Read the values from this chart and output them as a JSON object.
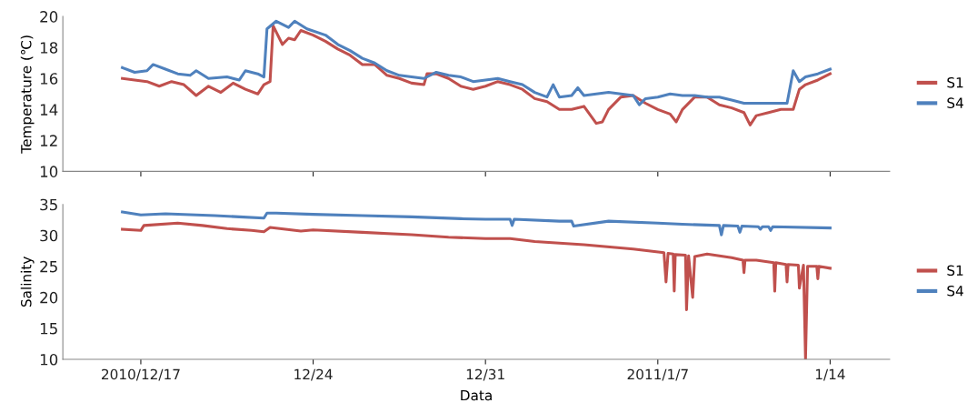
{
  "chart_data": [
    {
      "type": "line",
      "ylabel": "Temperature (℃)",
      "ylim": [
        10,
        20
      ],
      "yticks": [
        10,
        12,
        14,
        16,
        18,
        20
      ],
      "xlim": [
        "2010-12-13T20:00",
        "2011-01-16T10:00"
      ],
      "xticks": [
        {
          "value": "2010-12-17",
          "label": null
        },
        {
          "value": "2010-12-24",
          "label": null
        },
        {
          "value": "2010-12-31",
          "label": null
        },
        {
          "value": "2011-01-07",
          "label": null
        },
        {
          "value": "2011-01-14",
          "label": null
        }
      ],
      "tick_labels": "y",
      "legend": "right",
      "grid": false,
      "series": [
        {
          "name": "S1",
          "color": "#c0504d",
          "x": [
            "2010-12-16T06:00",
            "2010-12-16T18:00",
            "2010-12-17T06:00",
            "2010-12-17T18:00",
            "2010-12-18T06:00",
            "2010-12-18T18:00",
            "2010-12-19T06:00",
            "2010-12-19T18:00",
            "2010-12-20T06:00",
            "2010-12-20T18:00",
            "2010-12-21T06:00",
            "2010-12-21T18:00",
            "2010-12-22T00:00",
            "2010-12-22T06:00",
            "2010-12-22T09:00",
            "2010-12-22T18:00",
            "2010-12-23T00:00",
            "2010-12-23T06:00",
            "2010-12-23T12:00",
            "2010-12-24T00:00",
            "2010-12-24T12:00",
            "2010-12-25T00:00",
            "2010-12-25T12:00",
            "2010-12-26T00:00",
            "2010-12-26T12:00",
            "2010-12-27T00:00",
            "2010-12-27T12:00",
            "2010-12-28T00:00",
            "2010-12-28T12:00",
            "2010-12-28T15:00",
            "2010-12-29T00:00",
            "2010-12-29T12:00",
            "2010-12-30T00:00",
            "2010-12-30T12:00",
            "2010-12-31T00:00",
            "2010-12-31T12:00",
            "2011-01-01T00:00",
            "2011-01-01T12:00",
            "2011-01-02T00:00",
            "2011-01-02T12:00",
            "2011-01-03T00:00",
            "2011-01-03T12:00",
            "2011-01-04T00:00",
            "2011-01-04T12:00",
            "2011-01-04T18:00",
            "2011-01-05T00:00",
            "2011-01-05T12:00",
            "2011-01-06T00:00",
            "2011-01-06T12:00",
            "2011-01-07T00:00",
            "2011-01-07T12:00",
            "2011-01-07T18:00",
            "2011-01-08T00:00",
            "2011-01-08T12:00",
            "2011-01-09T00:00",
            "2011-01-09T12:00",
            "2011-01-10T00:00",
            "2011-01-10T12:00",
            "2011-01-10T18:00",
            "2011-01-11T00:00",
            "2011-01-11T12:00",
            "2011-01-12T00:00",
            "2011-01-12T12:00",
            "2011-01-12T18:00",
            "2011-01-13T00:00",
            "2011-01-13T12:00",
            "2011-01-14T00:00"
          ],
          "values": [
            16.0,
            15.9,
            15.8,
            15.5,
            15.8,
            15.6,
            14.9,
            15.5,
            15.1,
            15.7,
            15.3,
            15.0,
            15.6,
            15.8,
            19.4,
            18.2,
            18.6,
            18.5,
            19.1,
            18.8,
            18.4,
            17.9,
            17.5,
            16.9,
            16.9,
            16.2,
            16.0,
            15.7,
            15.6,
            16.3,
            16.3,
            16.0,
            15.5,
            15.3,
            15.5,
            15.8,
            15.6,
            15.3,
            14.7,
            14.5,
            14.0,
            14.0,
            14.2,
            13.1,
            13.2,
            14.0,
            14.8,
            14.9,
            14.4,
            14.0,
            13.7,
            13.2,
            14.0,
            14.8,
            14.8,
            14.3,
            14.1,
            13.8,
            13.0,
            13.6,
            13.8,
            14.0,
            14.0,
            15.3,
            15.6,
            15.9,
            16.3
          ]
        },
        {
          "name": "S4",
          "color": "#4f81bd",
          "x": [
            "2010-12-16T06:00",
            "2010-12-16T18:00",
            "2010-12-17T06:00",
            "2010-12-17T12:00",
            "2010-12-18T00:00",
            "2010-12-18T12:00",
            "2010-12-19T00:00",
            "2010-12-19T06:00",
            "2010-12-19T18:00",
            "2010-12-20T12:00",
            "2010-12-21T00:00",
            "2010-12-21T06:00",
            "2010-12-21T18:00",
            "2010-12-22T00:00",
            "2010-12-22T03:00",
            "2010-12-22T12:00",
            "2010-12-23T00:00",
            "2010-12-23T06:00",
            "2010-12-23T18:00",
            "2010-12-24T12:00",
            "2010-12-25T00:00",
            "2010-12-25T12:00",
            "2010-12-26T00:00",
            "2010-12-26T12:00",
            "2010-12-27T00:00",
            "2010-12-27T12:00",
            "2010-12-28T00:00",
            "2010-12-28T12:00",
            "2010-12-29T00:00",
            "2010-12-29T12:00",
            "2010-12-30T00:00",
            "2010-12-30T12:00",
            "2010-12-31T00:00",
            "2010-12-31T12:00",
            "2011-01-01T00:00",
            "2011-01-01T12:00",
            "2011-01-02T00:00",
            "2011-01-02T12:00",
            "2011-01-02T18:00",
            "2011-01-03T00:00",
            "2011-01-03T12:00",
            "2011-01-03T18:00",
            "2011-01-04T00:00",
            "2011-01-04T12:00",
            "2011-01-05T00:00",
            "2011-01-05T12:00",
            "2011-01-06T00:00",
            "2011-01-06T06:00",
            "2011-01-06T12:00",
            "2011-01-07T00:00",
            "2011-01-07T12:00",
            "2011-01-08T00:00",
            "2011-01-08T12:00",
            "2011-01-09T00:00",
            "2011-01-09T12:00",
            "2011-01-10T00:00",
            "2011-01-10T12:00",
            "2011-01-11T00:00",
            "2011-01-11T12:00",
            "2011-01-12T00:00",
            "2011-01-12T06:00",
            "2011-01-12T12:00",
            "2011-01-12T18:00",
            "2011-01-13T00:00",
            "2011-01-13T12:00",
            "2011-01-14T00:00"
          ],
          "values": [
            16.7,
            16.4,
            16.5,
            16.9,
            16.6,
            16.3,
            16.2,
            16.5,
            16.0,
            16.1,
            15.9,
            16.5,
            16.3,
            16.1,
            19.2,
            19.7,
            19.3,
            19.7,
            19.2,
            18.8,
            18.2,
            17.8,
            17.3,
            17.0,
            16.5,
            16.2,
            16.1,
            16.0,
            16.4,
            16.2,
            16.1,
            15.8,
            15.9,
            16.0,
            15.8,
            15.6,
            15.1,
            14.8,
            15.6,
            14.8,
            14.9,
            15.4,
            14.9,
            15.0,
            15.1,
            15.0,
            14.9,
            14.3,
            14.7,
            14.8,
            15.0,
            14.9,
            14.9,
            14.8,
            14.8,
            14.6,
            14.4,
            14.4,
            14.4,
            14.4,
            14.4,
            16.5,
            15.8,
            16.1,
            16.3,
            16.6
          ]
        }
      ]
    },
    {
      "type": "line",
      "ylabel": "Salinity",
      "xlabel": "Data",
      "ylim": [
        10,
        35
      ],
      "yticks": [
        10,
        15,
        20,
        25,
        30,
        35
      ],
      "xlim": [
        "2010-12-13T20:00",
        "2011-01-16T10:00"
      ],
      "xticks": [
        {
          "value": "2010-12-17",
          "label": "2010/12/17"
        },
        {
          "value": "2010-12-24",
          "label": "12/24"
        },
        {
          "value": "2010-12-31",
          "label": "12/31"
        },
        {
          "value": "2011-01-07",
          "label": "2011/1/7"
        },
        {
          "value": "2011-01-14",
          "label": "1/14"
        }
      ],
      "legend": "right",
      "grid": false,
      "series": [
        {
          "name": "S1",
          "color": "#c0504d",
          "x": [
            "2010-12-16T06:00",
            "2010-12-17T00:00",
            "2010-12-17T03:00",
            "2010-12-18T12:00",
            "2010-12-19T12:00",
            "2010-12-20T12:00",
            "2010-12-21T12:00",
            "2010-12-22T00:00",
            "2010-12-22T06:00",
            "2010-12-23T12:00",
            "2010-12-24T00:00",
            "2010-12-26T00:00",
            "2010-12-28T00:00",
            "2010-12-29T12:00",
            "2010-12-31T00:00",
            "2011-01-01T00:00",
            "2011-01-02T00:00",
            "2011-01-04T00:00",
            "2011-01-06T00:00",
            "2011-01-07T06:00",
            "2011-01-07T08:00",
            "2011-01-07T10:00",
            "2011-01-07T15:00",
            "2011-01-07T16:00",
            "2011-01-07T17:00",
            "2011-01-08T03:00",
            "2011-01-08T04:00",
            "2011-01-08T06:00",
            "2011-01-08T10:00",
            "2011-01-08T12:00",
            "2011-01-09T00:00",
            "2011-01-10T00:00",
            "2011-01-10T11:00",
            "2011-01-10T12:00",
            "2011-01-10T13:00",
            "2011-01-11T00:00",
            "2011-01-11T17:00",
            "2011-01-11T18:00",
            "2011-01-11T19:00",
            "2011-01-12T05:00",
            "2011-01-12T06:00",
            "2011-01-12T07:00",
            "2011-01-12T17:00",
            "2011-01-12T18:00",
            "2011-01-12T22:00",
            "2011-01-13T00:00",
            "2011-01-13T02:00",
            "2011-01-13T11:00",
            "2011-01-13T12:00",
            "2011-01-13T13:00",
            "2011-01-14T00:00"
          ],
          "values": [
            31.0,
            30.8,
            31.6,
            32.0,
            31.6,
            31.1,
            30.8,
            30.6,
            31.3,
            30.7,
            30.9,
            30.5,
            30.1,
            29.7,
            29.5,
            29.5,
            29.0,
            28.5,
            27.8,
            27.2,
            22.5,
            27.1,
            27.0,
            21.0,
            26.9,
            26.8,
            18.0,
            26.7,
            20.0,
            26.6,
            27.0,
            26.4,
            26.0,
            24.0,
            26.0,
            26.0,
            25.6,
            21.0,
            25.6,
            25.3,
            22.5,
            25.3,
            25.2,
            21.5,
            25.2,
            10.0,
            25.0,
            25.0,
            23.0,
            25.0,
            24.7
          ]
        },
        {
          "name": "S4",
          "color": "#4f81bd",
          "x": [
            "2010-12-16T06:00",
            "2010-12-17T00:00",
            "2010-12-18T00:00",
            "2010-12-20T00:00",
            "2010-12-21T00:00",
            "2010-12-22T00:00",
            "2010-12-22T03:00",
            "2010-12-22T12:00",
            "2010-12-24T00:00",
            "2010-12-26T00:00",
            "2010-12-28T00:00",
            "2010-12-30T00:00",
            "2010-12-31T00:00",
            "2011-01-01T00:00",
            "2011-01-01T02:00",
            "2011-01-01T04:00",
            "2011-01-03T00:00",
            "2011-01-03T12:00",
            "2011-01-03T14:00",
            "2011-01-05T00:00",
            "2011-01-07T00:00",
            "2011-01-08T00:00",
            "2011-01-09T12:00",
            "2011-01-09T14:00",
            "2011-01-09T16:00",
            "2011-01-10T06:00",
            "2011-01-10T08:00",
            "2011-01-10T10:00",
            "2011-01-11T02:00",
            "2011-01-11T04:00",
            "2011-01-11T06:00",
            "2011-01-11T12:00",
            "2011-01-11T14:00",
            "2011-01-11T16:00",
            "2011-01-14T00:00"
          ],
          "values": [
            33.8,
            33.3,
            33.5,
            33.2,
            33.0,
            32.8,
            33.6,
            33.6,
            33.4,
            33.2,
            33.0,
            32.7,
            32.6,
            32.6,
            31.6,
            32.6,
            32.3,
            32.3,
            31.5,
            32.3,
            32.0,
            31.8,
            31.6,
            30.1,
            31.6,
            31.5,
            30.5,
            31.5,
            31.4,
            31.0,
            31.4,
            31.4,
            30.8,
            31.4,
            31.2
          ]
        }
      ]
    }
  ]
}
